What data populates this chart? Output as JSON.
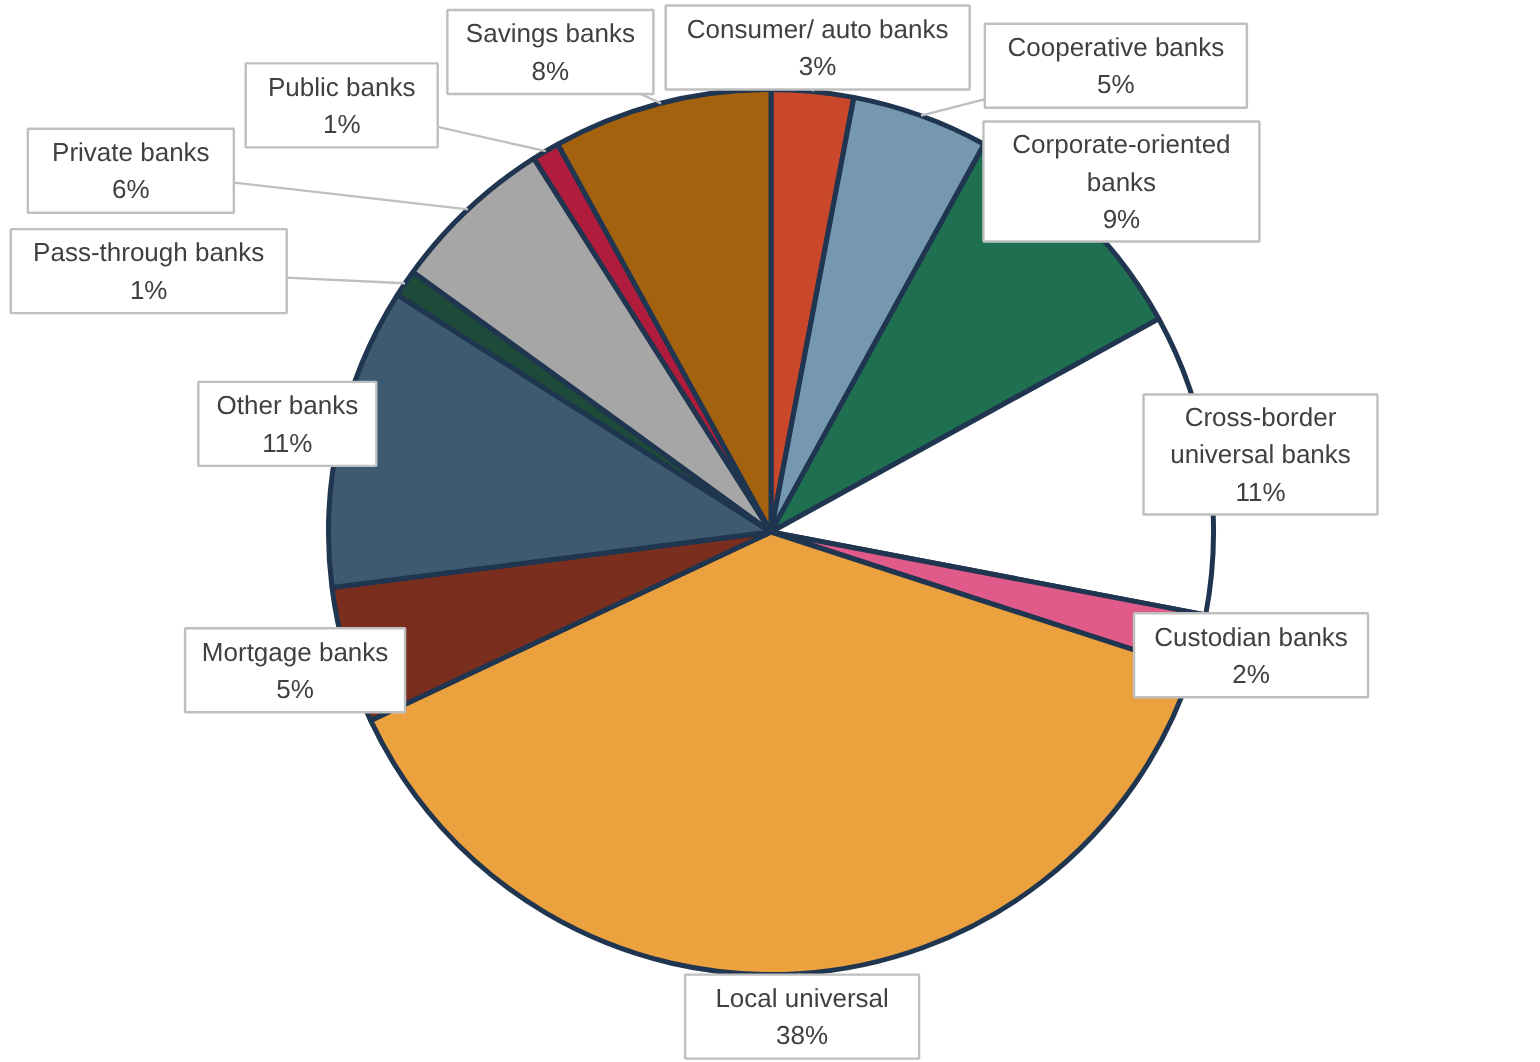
{
  "chart_data": {
    "type": "pie",
    "categories": [
      "Consumer/ auto banks",
      "Cooperative banks",
      "Corporate-oriented banks",
      "Cross-border universal banks",
      "Custodian banks",
      "Local universal",
      "Mortgage banks",
      "Other banks",
      "Pass-through banks",
      "Private banks",
      "Public banks",
      "Savings banks"
    ],
    "values": [
      3,
      5,
      9,
      11,
      2,
      38,
      5,
      11,
      1,
      6,
      1,
      8
    ],
    "value_labels": [
      "3%",
      "5%",
      "9%",
      "11%",
      "2%",
      "38%",
      "5%",
      "11%",
      "1%",
      "6%",
      "1%",
      "8%"
    ],
    "colors": [
      "#c9472b",
      "#7598b0",
      "#1f7050",
      "#ffffff",
      "#e05a8a",
      "#eba23e",
      "#7a2e1e",
      "#3d5a70",
      "#1e4a3a",
      "#a6a6a6",
      "#b01c3c",
      "#a4620f"
    ]
  }
}
